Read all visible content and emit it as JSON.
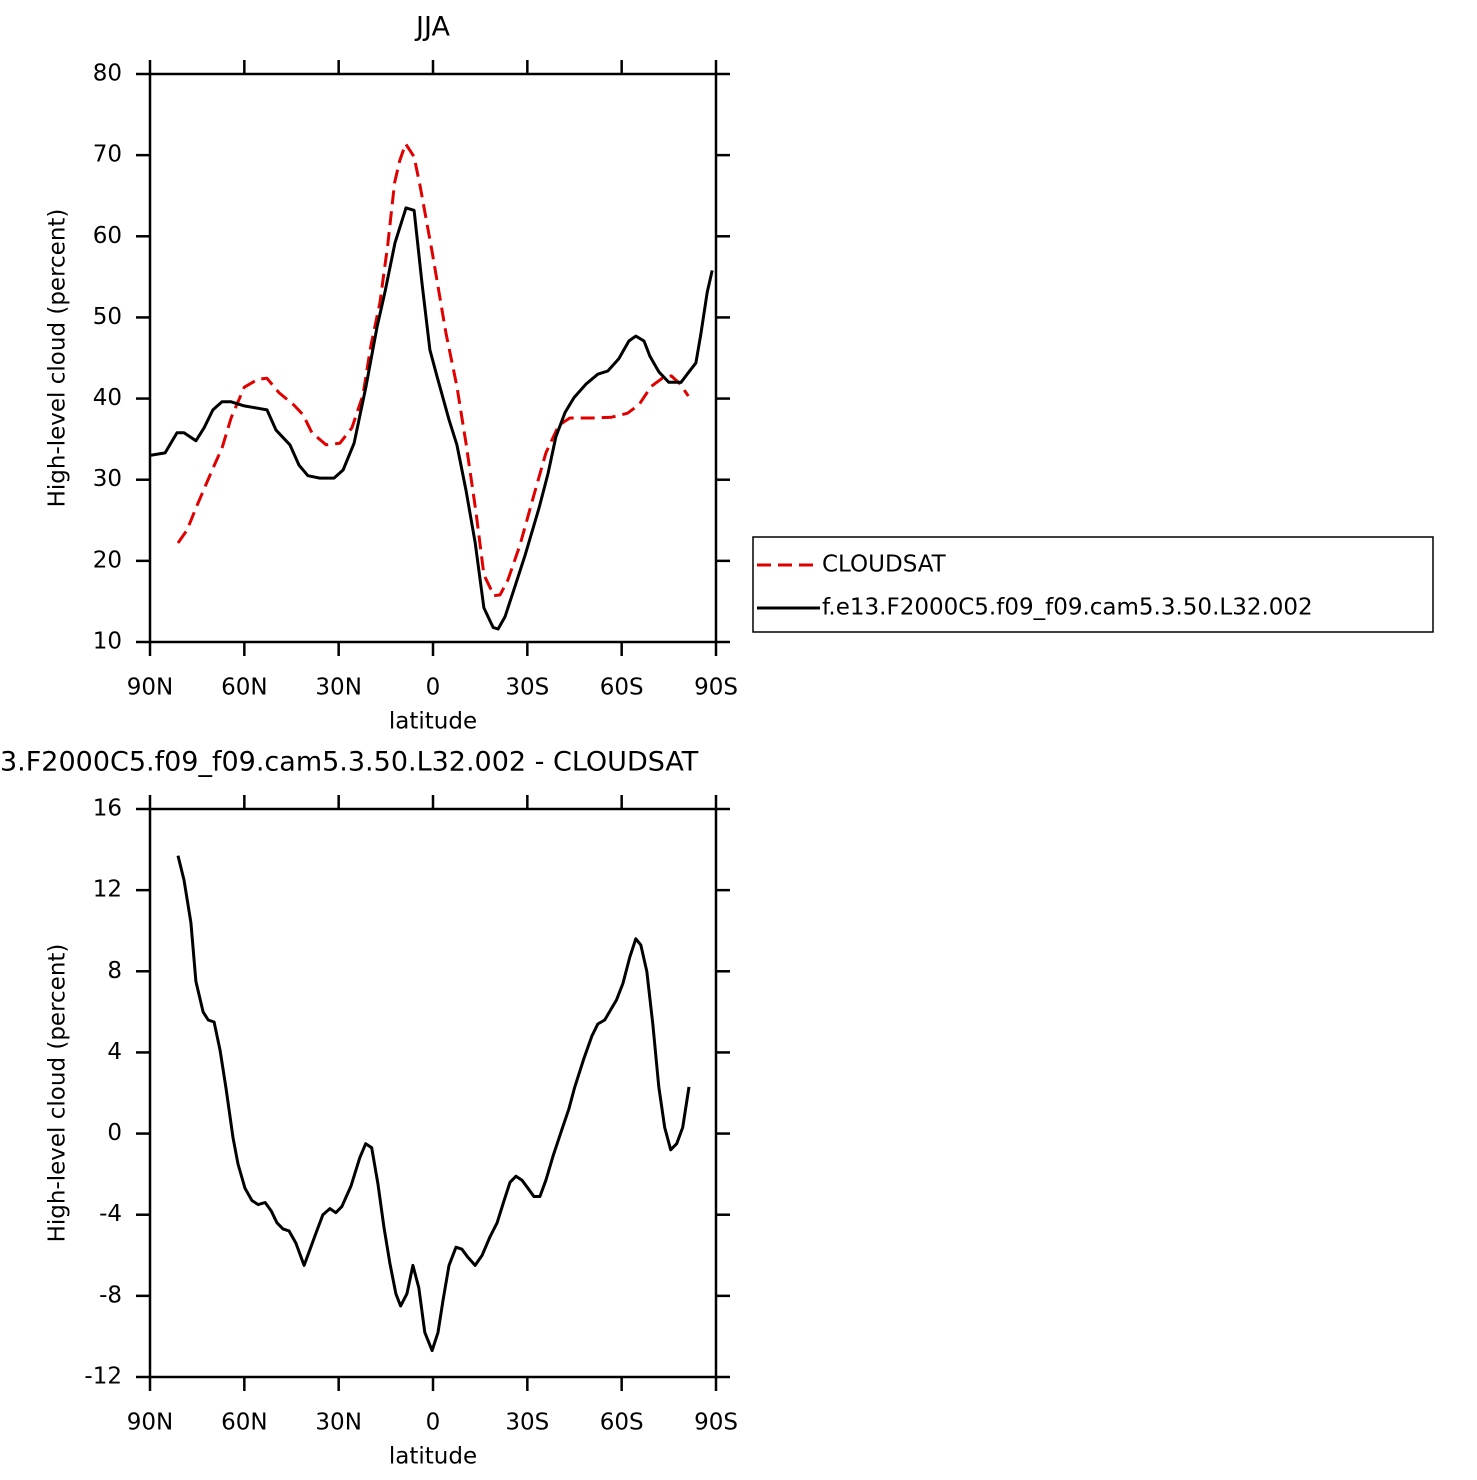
{
  "chart_data": [
    {
      "type": "line",
      "title": "JJA",
      "xlabel": "latitude",
      "ylabel": "High-level cloud (percent)",
      "xlim": [
        90,
        -90
      ],
      "xticks": [
        {
          "value": 90,
          "label": "90N"
        },
        {
          "value": 60,
          "label": "60N"
        },
        {
          "value": 30,
          "label": "30N"
        },
        0,
        {
          "value": -30,
          "label": "30S"
        },
        {
          "value": -60,
          "label": "60S"
        },
        {
          "value": -90,
          "label": "90S"
        }
      ],
      "ylim": [
        10,
        80
      ],
      "yticks": [
        10,
        20,
        30,
        40,
        50,
        60,
        70,
        80
      ],
      "legend": "right",
      "series": [
        {
          "name": "CLOUDSAT",
          "color": "#e00000",
          "dash": true,
          "x": [
            81.1,
            78.2,
            75.4,
            70.0,
            67.1,
            64.2,
            60,
            55.6,
            52.8,
            48.9,
            44.2,
            41.3,
            38.5,
            34.0,
            29.6,
            25.8,
            22.3,
            19.8,
            16.9,
            14.4,
            12.2,
            10.6,
            8.7,
            6.0,
            4.1,
            0.3,
            -4.1,
            -7.6,
            -10.5,
            -13.7,
            -16.2,
            -19.4,
            -21.3,
            -23.8,
            -27.7,
            -32.1,
            -35.9,
            -40.0,
            -43.5,
            -50.8,
            -56.8,
            -61.9,
            -65.6,
            -69.4,
            -72.9,
            -75.8,
            -78.6,
            -81.2
          ],
          "values": [
            22.2,
            23.8,
            26.5,
            31.4,
            33.9,
            37.6,
            41.4,
            42.4,
            42.5,
            40.7,
            39.2,
            38.0,
            35.8,
            34.3,
            34.5,
            36.4,
            40.4,
            46.4,
            51.8,
            58.9,
            66.6,
            69.3,
            71.4,
            69.8,
            66.2,
            58.1,
            48.1,
            41.5,
            34.5,
            25.9,
            18.3,
            15.7,
            15.8,
            17.6,
            22.0,
            28.1,
            33.3,
            36.7,
            37.6,
            37.6,
            37.7,
            38.2,
            39.3,
            41.5,
            42.5,
            42.8,
            41.8,
            40.3
          ]
        },
        {
          "name": "f.e13.F2000C5.f09_f09.cam5.3.50.L32.002",
          "color": "#000000",
          "dash": false,
          "x": [
            90,
            85.2,
            81.4,
            79.2,
            75.4,
            72.8,
            70.0,
            67.1,
            64.2,
            60,
            55.6,
            52.8,
            49.9,
            45.5,
            42.6,
            39.8,
            36.0,
            31.5,
            28.6,
            25.1,
            21.3,
            17.8,
            15.3,
            12.1,
            8.6,
            6.0,
            3.5,
            1.0,
            -1.3,
            -5.1,
            -7.6,
            -10.5,
            -13.4,
            -16.2,
            -19.1,
            -20.7,
            -22.9,
            -26.1,
            -29.3,
            -33.7,
            -36.6,
            -39.1,
            -42.0,
            -44.8,
            -48.7,
            -52.4,
            -55.6,
            -59.1,
            -62.3,
            -64.5,
            -67.1,
            -69.0,
            -71.8,
            -75.0,
            -78.9,
            -81.4,
            -83.6,
            -85.2,
            -87.2,
            -88.8
          ],
          "values": [
            33.0,
            33.3,
            35.8,
            35.8,
            34.8,
            36.4,
            38.6,
            39.6,
            39.6,
            39.1,
            38.8,
            38.6,
            36.1,
            34.3,
            31.8,
            30.5,
            30.2,
            30.2,
            31.2,
            34.5,
            41.5,
            48.8,
            53.1,
            59.2,
            63.5,
            63.2,
            54.2,
            46.0,
            42.7,
            37.4,
            34.3,
            28.7,
            22.3,
            14.2,
            11.8,
            11.6,
            13.1,
            16.9,
            20.7,
            26.5,
            30.8,
            35.3,
            38.3,
            40.1,
            41.8,
            43.0,
            43.4,
            44.9,
            47.1,
            47.7,
            47.1,
            45.2,
            43.3,
            42.0,
            42.0,
            43.3,
            44.4,
            48.0,
            53.1,
            55.8
          ]
        }
      ]
    },
    {
      "type": "line",
      "title": "3.F2000C5.f09_f09.cam5.3.50.L32.002 - CLOUDSAT",
      "xlabel": "latitude",
      "ylabel": "High-level cloud (percent)",
      "xlim": [
        90,
        -90
      ],
      "xticks": [
        {
          "value": 90,
          "label": "90N"
        },
        {
          "value": 60,
          "label": "60N"
        },
        {
          "value": 30,
          "label": "30N"
        },
        0,
        {
          "value": -30,
          "label": "30S"
        },
        {
          "value": -60,
          "label": "60S"
        },
        {
          "value": -90,
          "label": "90S"
        }
      ],
      "ylim": [
        -12,
        16
      ],
      "yticks": [
        -12,
        -8,
        -4,
        0,
        4,
        8,
        12,
        16
      ],
      "series": [
        {
          "color": "#000000",
          "dash": false,
          "x": [
            81.1,
            79.2,
            77.0,
            75.4,
            73.1,
            71.5,
            69.6,
            67.7,
            65.8,
            63.6,
            62.0,
            59.8,
            57.6,
            55.6,
            53.4,
            51.5,
            49.6,
            47.7,
            45.8,
            43.6,
            41.0,
            39.1,
            37.2,
            35.0,
            32.8,
            30.9,
            29.0,
            26.1,
            23.3,
            21.4,
            19.5,
            17.5,
            15.6,
            13.7,
            11.8,
            10.3,
            8.3,
            6.4,
            4.5,
            2.6,
            0.3,
            -1.6,
            -3.2,
            -5.1,
            -7.3,
            -9.2,
            -11.1,
            -13.4,
            -15.6,
            -18.1,
            -20.4,
            -22.6,
            -24.5,
            -26.4,
            -28.3,
            -30.2,
            -32.1,
            -34.0,
            -35.9,
            -38.2,
            -41.0,
            -43.2,
            -45.1,
            -48.0,
            -50.5,
            -52.4,
            -54.6,
            -56.5,
            -58.4,
            -60.4,
            -62.6,
            -64.5,
            -66.1,
            -68.0,
            -69.9,
            -71.8,
            -73.7,
            -75.6,
            -77.5,
            -79.4,
            -81.4
          ],
          "values": [
            13.7,
            12.5,
            10.4,
            7.5,
            6.0,
            5.6,
            5.5,
            4.1,
            2.2,
            -0.2,
            -1.5,
            -2.7,
            -3.3,
            -3.5,
            -3.4,
            -3.8,
            -4.4,
            -4.7,
            -4.8,
            -5.4,
            -6.5,
            -5.7,
            -4.9,
            -4.0,
            -3.7,
            -3.9,
            -3.6,
            -2.6,
            -1.2,
            -0.5,
            -0.7,
            -2.5,
            -4.6,
            -6.4,
            -7.9,
            -8.5,
            -7.9,
            -6.5,
            -7.6,
            -9.8,
            -10.7,
            -9.8,
            -8.2,
            -6.5,
            -5.6,
            -5.7,
            -6.1,
            -6.5,
            -6.0,
            -5.1,
            -4.4,
            -3.3,
            -2.4,
            -2.1,
            -2.3,
            -2.7,
            -3.1,
            -3.1,
            -2.3,
            -1.1,
            0.2,
            1.2,
            2.3,
            3.7,
            4.8,
            5.4,
            5.6,
            6.1,
            6.6,
            7.4,
            8.7,
            9.6,
            9.3,
            8.0,
            5.4,
            2.3,
            0.3,
            -0.8,
            -0.5,
            0.3,
            2.3
          ]
        }
      ]
    }
  ]
}
